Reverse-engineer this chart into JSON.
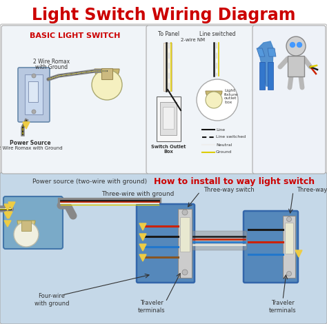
{
  "title": "Light Switch Wiring Diagram",
  "title_color": "#cc0000",
  "title_fontsize": 17,
  "top_bg": "#ffffff",
  "bottom_bg": "#c5d8e8",
  "sec1_title": "BASIC LIGHT SWITCH",
  "sec1_title_color": "#cc0000",
  "label_2wire_top": "2 Wire Romax",
  "label_2wire_bot": "with Ground",
  "label_power": "Power Source",
  "label_power2": "2 Wire Romax with Ground",
  "to_panel": "To Panel",
  "line_switched_lbl": "Line switched",
  "wire_nm": "2-wire NM",
  "light_fixture": "Light\nfixture\noutlet\nbox",
  "switch_outlet": "Switch Outlet",
  "switch_box_lbl": "Box",
  "legend": [
    "Line",
    "Line switched",
    "Neutral",
    "Ground"
  ],
  "legend_colors": [
    "#111111",
    "#111111",
    "#eeeeee",
    "#ddcc00"
  ],
  "legend_dashes": [
    false,
    true,
    false,
    false
  ],
  "bottom_title": "How to install to way light switch",
  "bottom_title_color": "#cc0000",
  "lbl_power_src": "Power source (two-wire with ground)",
  "lbl_three_wire": "Three-wire with ground",
  "lbl_four_wire": "Four-wire\nwith ground",
  "lbl_sw1": "Three-way switch",
  "lbl_sw2": "Three-way switch",
  "lbl_trav1": "Traveler\nterminals",
  "lbl_trav2": "Traveler\nterminals",
  "wire_black": "#1a1a1a",
  "wire_red": "#cc2200",
  "wire_white": "#e8e8e0",
  "wire_yellow": "#ddcc00",
  "wire_blue": "#2277cc",
  "wire_gray": "#888888",
  "wire_brown": "#885522",
  "sw_box_color": "#5588bb",
  "sw_box_edge": "#3366aa"
}
